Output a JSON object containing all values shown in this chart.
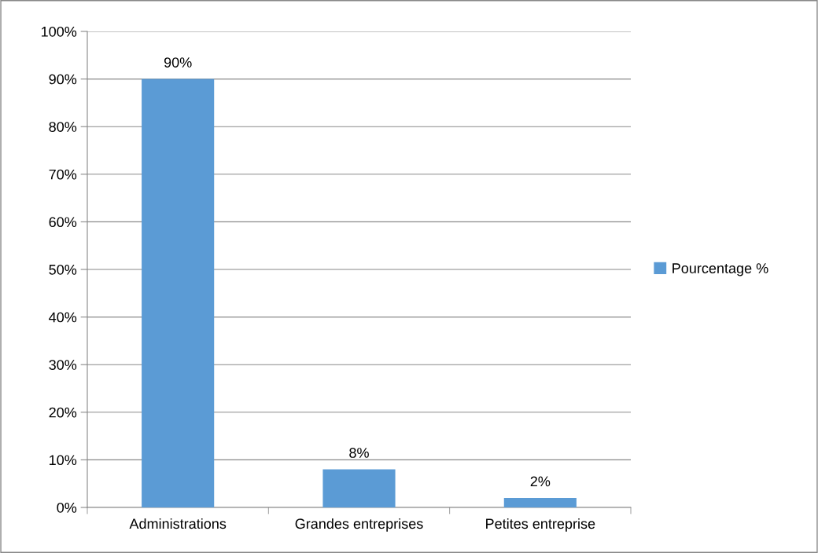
{
  "chart_data": {
    "type": "bar",
    "categories": [
      "Administrations",
      "Grandes entreprises",
      "Petites entreprise"
    ],
    "series": [
      {
        "name": "Pourcentage %",
        "color": "#5b9bd5",
        "values": [
          90,
          8,
          2
        ],
        "value_labels": [
          "90%",
          "8%",
          "2%"
        ]
      }
    ],
    "ylim": [
      0,
      100
    ],
    "yticks": [
      {
        "value": 0,
        "label": "0%"
      },
      {
        "value": 10,
        "label": "10%"
      },
      {
        "value": 20,
        "label": "20%"
      },
      {
        "value": 30,
        "label": "30%"
      },
      {
        "value": 40,
        "label": "40%"
      },
      {
        "value": 50,
        "label": "50%"
      },
      {
        "value": 60,
        "label": "60%"
      },
      {
        "value": 70,
        "label": "70%"
      },
      {
        "value": 80,
        "label": "80%"
      },
      {
        "value": 90,
        "label": "90%"
      },
      {
        "value": 100,
        "label": "100%"
      }
    ],
    "grid": "y",
    "legend": "right"
  }
}
